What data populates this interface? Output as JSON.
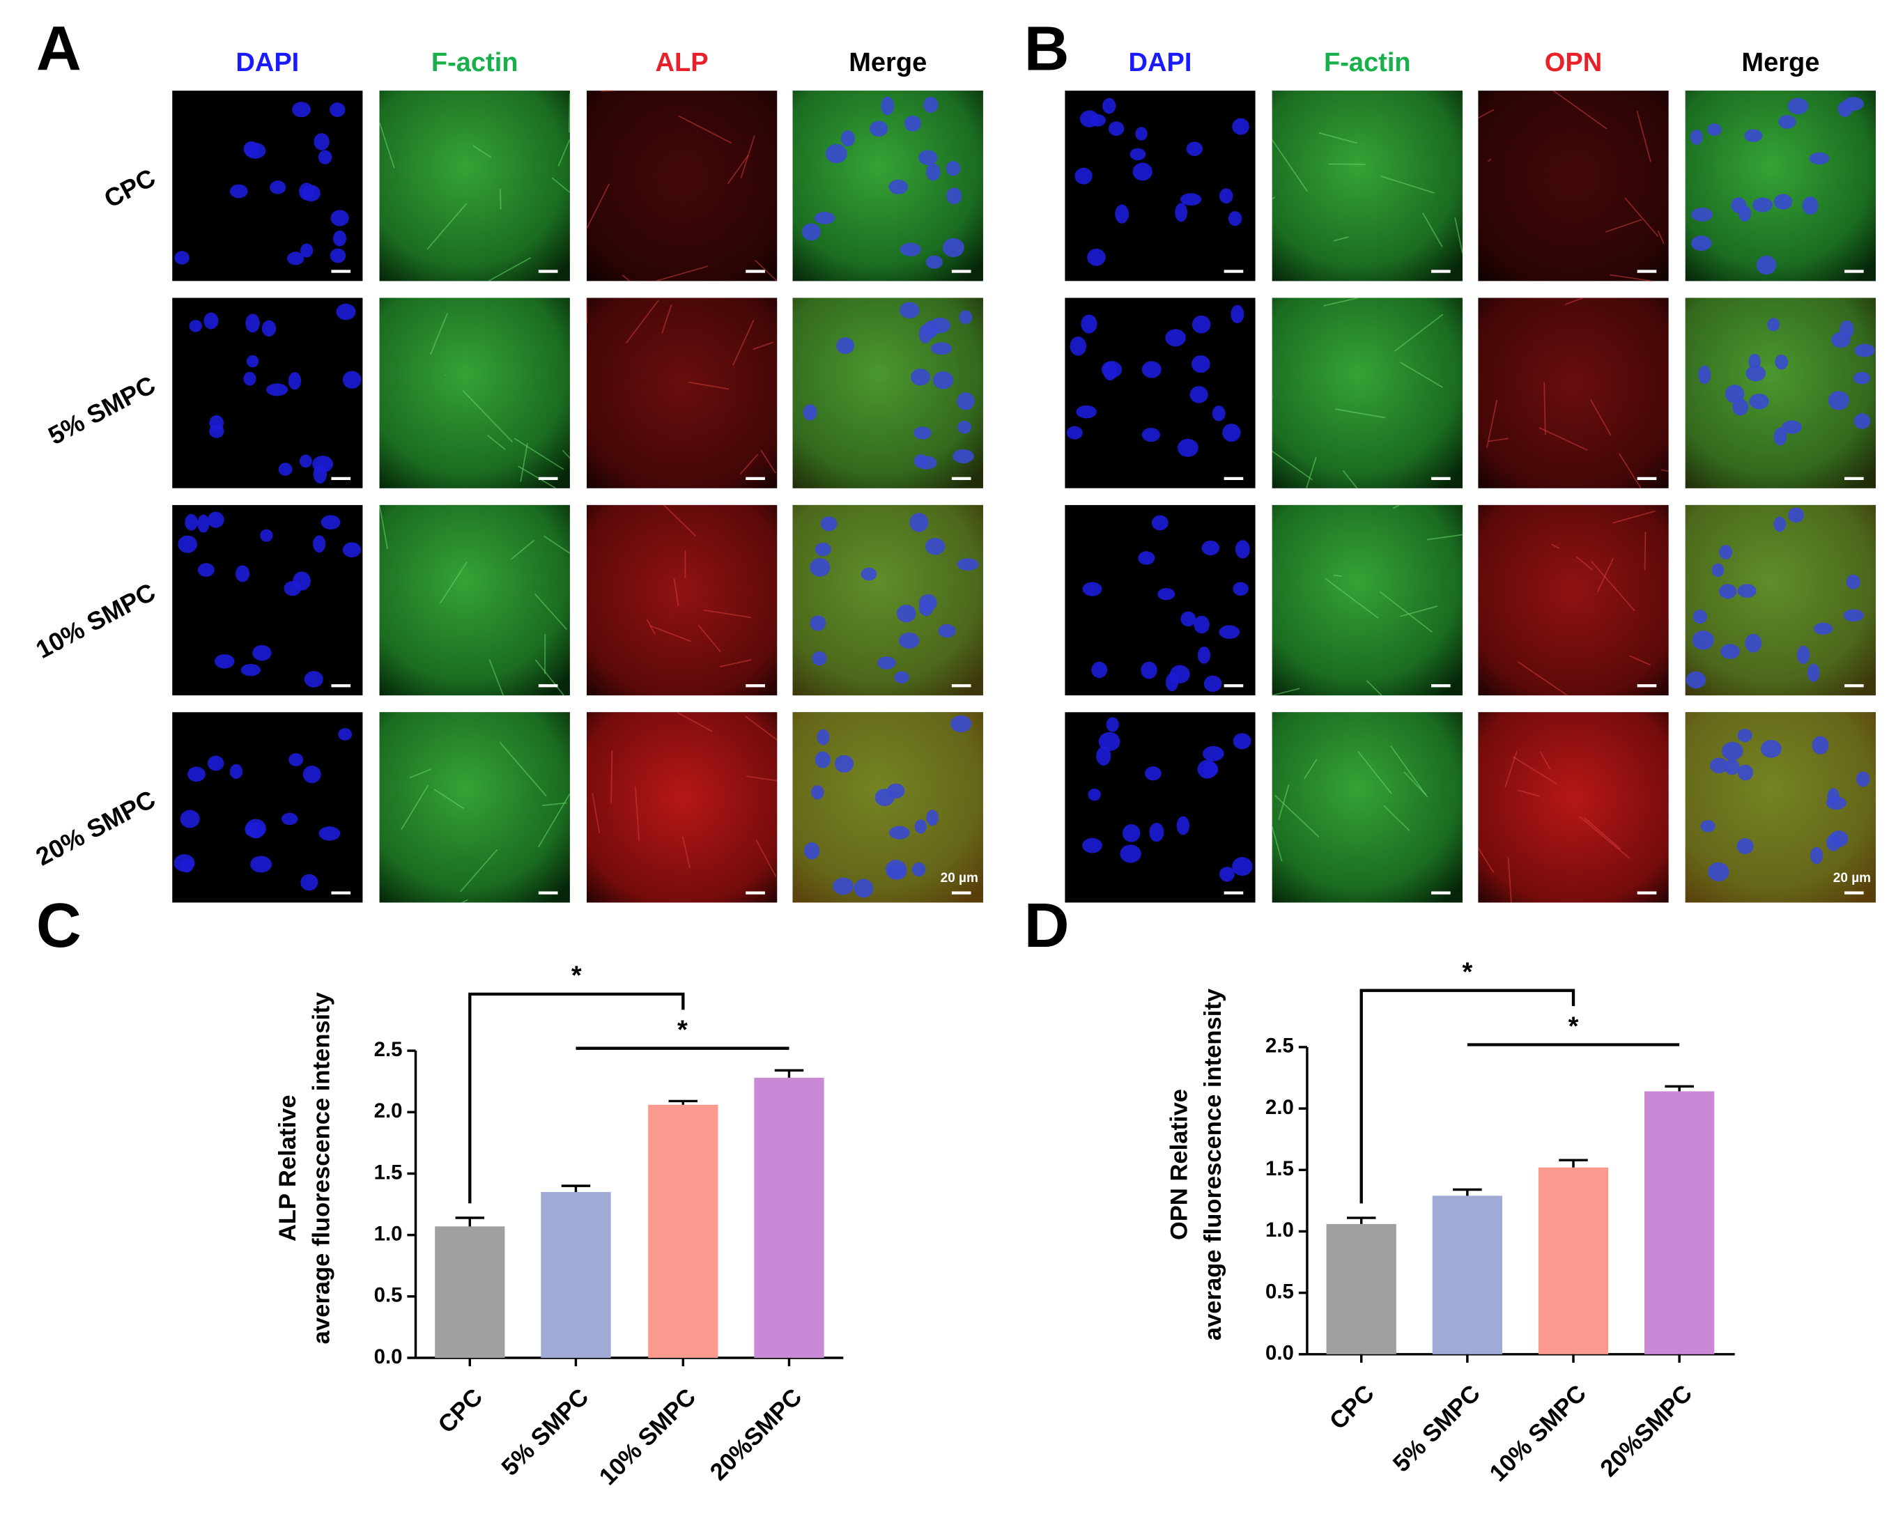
{
  "panels": [
    {
      "letter": "A",
      "columns": [
        "DAPI",
        "F-actin",
        "ALP",
        "Merge"
      ],
      "column_colors": [
        "#1a1aff",
        "#18b04a",
        "#e8202a",
        "#000000"
      ],
      "rows": [
        "CPC",
        "5% SMPC",
        "10% SMPC",
        "20% SMPC"
      ],
      "scale_bar": "20 µm"
    },
    {
      "letter": "B",
      "columns": [
        "DAPI",
        "F-actin",
        "OPN",
        "Merge"
      ],
      "column_colors": [
        "#1a1aff",
        "#18b04a",
        "#e8202a",
        "#000000"
      ],
      "scale_bar": "20 µm"
    }
  ],
  "chart_data": [
    {
      "type": "bar",
      "label": "C",
      "ylabel": [
        "ALP Relative",
        "average fluorescence intensity"
      ],
      "categories": [
        "CPC",
        "5% SMPC",
        "10% SMPC",
        "20%SMPC"
      ],
      "values": [
        1.07,
        1.35,
        2.06,
        2.28
      ],
      "errors": [
        0.07,
        0.05,
        0.03,
        0.06
      ],
      "colors": [
        "#a0a0a0",
        "#a0aad6",
        "#fa9a8e",
        "#c989d6"
      ],
      "ylim": [
        0,
        2.5
      ],
      "yticks": [
        {
          "value": 0,
          "label": "0.0"
        },
        0.5,
        {
          "value": 1,
          "label": "1.0"
        },
        1.5,
        {
          "value": 2,
          "label": "2.0"
        },
        2.5
      ],
      "comparisons": [
        {
          "label": "*",
          "groups": [
            "CPC",
            "10% SMPC"
          ]
        },
        {
          "label": "*",
          "groups": [
            "5% SMPC",
            "20%SMPC"
          ]
        }
      ]
    },
    {
      "type": "bar",
      "label": "D",
      "ylabel": [
        "OPN Relative",
        "average fluorescence intensity"
      ],
      "categories": [
        "CPC",
        "5% SMPC",
        "10% SMPC",
        "20%SMPC"
      ],
      "values": [
        1.06,
        1.29,
        1.52,
        2.14
      ],
      "errors": [
        0.05,
        0.05,
        0.06,
        0.04
      ],
      "colors": [
        "#a0a0a0",
        "#a0aad6",
        "#fa9a8e",
        "#c989d6"
      ],
      "ylim": [
        0,
        2.5
      ],
      "yticks": [
        {
          "value": 0,
          "label": "0.0"
        },
        0.5,
        {
          "value": 1,
          "label": "1.0"
        },
        1.5,
        {
          "value": 2,
          "label": "2.0"
        },
        2.5
      ],
      "comparisons": [
        {
          "label": "*",
          "groups": [
            "CPC",
            "10% SMPC"
          ]
        },
        {
          "label": "*",
          "groups": [
            "5% SMPC",
            "20%SMPC"
          ]
        }
      ]
    }
  ]
}
